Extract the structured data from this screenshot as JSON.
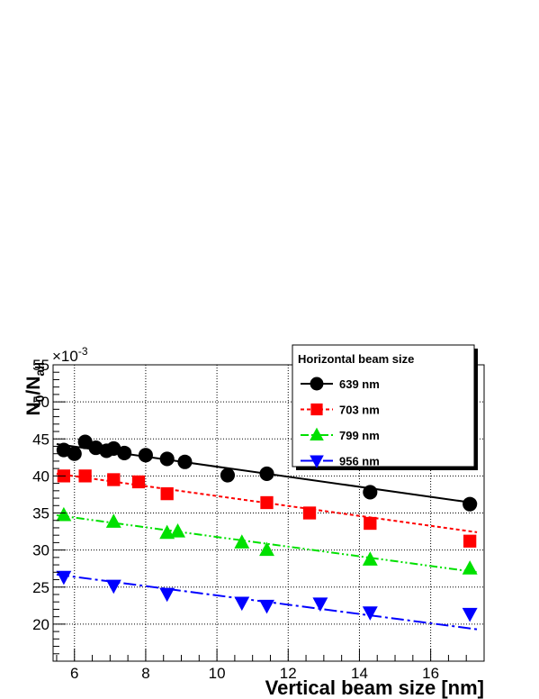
{
  "chart_data": {
    "type": "scatter",
    "xlabel": "Vertical beam size [nm]",
    "ylabel_main": "N",
    "ylabel_sub0": "0",
    "ylabel_slash": "/N",
    "ylabel_sub1": "all",
    "y_multiplier_base": "×10",
    "y_multiplier_exp": "-3",
    "xlim": [
      5.4,
      17.5
    ],
    "ylim": [
      15,
      55
    ],
    "x_ticks": [
      6,
      8,
      10,
      12,
      14,
      16
    ],
    "y_ticks": [
      20,
      25,
      30,
      35,
      40,
      45,
      50,
      55
    ],
    "grid": true,
    "legend": {
      "title": "Horizontal beam size",
      "placement": "top-right"
    },
    "series": [
      {
        "name": "639 nm",
        "color": "#000000",
        "marker": "circle",
        "dash": "solid",
        "fit": [
          [
            5.5,
            44.3
          ],
          [
            17.3,
            36.3
          ]
        ],
        "points": [
          [
            5.7,
            43.5
          ],
          [
            6.0,
            43.0
          ],
          [
            6.3,
            44.6
          ],
          [
            6.6,
            43.8
          ],
          [
            6.9,
            43.4
          ],
          [
            7.1,
            43.7
          ],
          [
            7.4,
            43.1
          ],
          [
            8.0,
            42.8
          ],
          [
            8.6,
            42.3
          ],
          [
            9.1,
            41.9
          ],
          [
            10.3,
            40.1
          ],
          [
            11.4,
            40.3
          ],
          [
            14.3,
            37.8
          ],
          [
            17.1,
            36.2
          ]
        ]
      },
      {
        "name": "703 nm",
        "color": "#ff0000",
        "marker": "square",
        "dash": "4,3",
        "fit": [
          [
            5.5,
            40.3
          ],
          [
            17.3,
            32.4
          ]
        ],
        "points": [
          [
            5.7,
            40.0
          ],
          [
            6.3,
            40.0
          ],
          [
            7.1,
            39.5
          ],
          [
            7.8,
            39.2
          ],
          [
            8.6,
            37.6
          ],
          [
            11.4,
            36.4
          ],
          [
            12.6,
            35.0
          ],
          [
            14.3,
            33.6
          ],
          [
            17.1,
            31.2
          ]
        ]
      },
      {
        "name": "799 nm",
        "color": "#00e000",
        "marker": "triangle-up",
        "dash": "9,3,2,3,2,3",
        "fit": [
          [
            5.5,
            34.7
          ],
          [
            17.3,
            27.0
          ]
        ],
        "points": [
          [
            5.7,
            34.7
          ],
          [
            7.1,
            33.8
          ],
          [
            8.6,
            32.3
          ],
          [
            8.9,
            32.5
          ],
          [
            10.7,
            31.0
          ],
          [
            11.4,
            30.0
          ],
          [
            14.3,
            28.7
          ],
          [
            17.1,
            27.5
          ]
        ]
      },
      {
        "name": "956 nm",
        "color": "#0000ff",
        "marker": "triangle-down",
        "dash": "14,4,3,4",
        "fit": [
          [
            5.5,
            26.7
          ],
          [
            17.3,
            19.3
          ]
        ],
        "points": [
          [
            5.7,
            26.4
          ],
          [
            7.1,
            25.2
          ],
          [
            8.6,
            24.1
          ],
          [
            10.7,
            22.9
          ],
          [
            11.4,
            22.5
          ],
          [
            12.9,
            22.8
          ],
          [
            14.3,
            21.6
          ],
          [
            17.1,
            21.4
          ]
        ]
      }
    ]
  }
}
